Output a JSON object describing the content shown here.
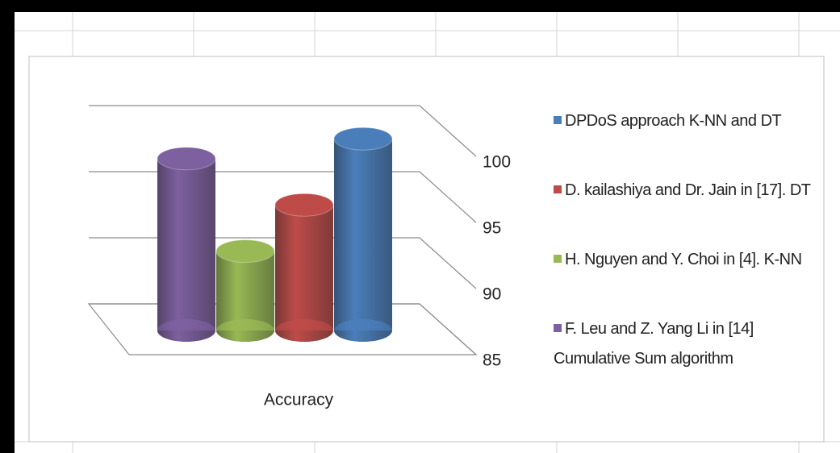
{
  "chart_data": {
    "type": "bar3d",
    "categories": [
      "Accuracy"
    ],
    "series": [
      {
        "name": "DPDoS approach K-NN and DT",
        "color": "#4a7ebb",
        "values": [
          99.5
        ]
      },
      {
        "name": "D. kailashiya and Dr. Jain in [17]. DT",
        "color": "#be4b48",
        "values": [
          94.5
        ]
      },
      {
        "name": "H. Nguyen and Y. Choi in [4]. K-NN",
        "color": "#98b954",
        "values": [
          91
        ]
      },
      {
        "name": "F. Leu and Z. Yang Li in [14] Cumulative Sum algorithm",
        "color": "#7d60a0",
        "values": [
          98
        ]
      }
    ],
    "ylim": [
      85,
      100
    ],
    "yticks": [
      85,
      90,
      95,
      100
    ],
    "grid": true,
    "legend": "right"
  }
}
